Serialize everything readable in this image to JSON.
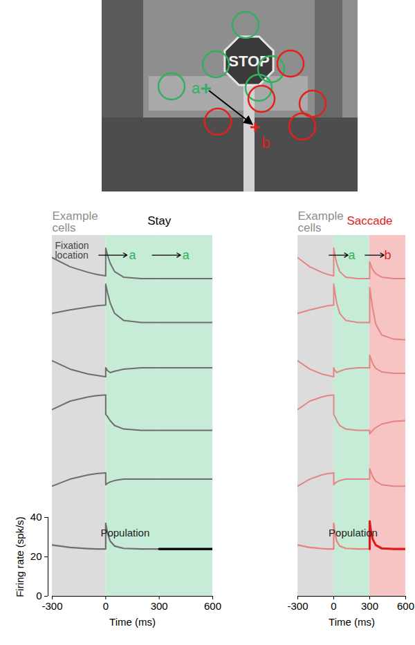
{
  "scene": {
    "sign_text": "STOP",
    "fixations": [
      {
        "label": "a",
        "color": "#33b05f"
      },
      {
        "label": "b",
        "color": "#e3201b"
      }
    ]
  },
  "chart_data": [
    {
      "type": "line",
      "title": "Stay",
      "panel_label": "Example cells",
      "fixation_label": "Fixation location",
      "x": [
        -300,
        -200,
        -100,
        -50,
        0,
        0,
        10,
        25,
        50,
        100,
        200,
        300,
        300,
        310,
        325,
        350,
        400,
        500,
        600
      ],
      "xlim": [
        -300,
        600
      ],
      "xticks": [
        -300,
        0,
        300,
        600
      ],
      "xlabel": "Time (ms)",
      "epochs": [
        {
          "start": -300,
          "end": 0,
          "color": "#dcdcdc"
        },
        {
          "start": 0,
          "end": 300,
          "color": "#c6ebd6",
          "fixation": "a",
          "fixation_color": "#33b05f"
        },
        {
          "start": 300,
          "end": 600,
          "color": "#c6ebd6",
          "fixation": "a",
          "fixation_color": "#33b05f"
        }
      ],
      "example_cells": {
        "ylim": [
          0,
          405
        ],
        "tick_labels": false,
        "series": [
          {
            "color": "#6e6e6e",
            "values": [
              373,
              360,
              352,
              349,
              347,
              387,
              377,
              365,
              353,
              345,
              343,
              343,
              343,
              343,
              343,
              343,
              343,
              343,
              343
            ]
          },
          {
            "color": "#6e6e6e",
            "values": [
              293,
              298,
              302,
              304,
              305,
              335,
              323,
              308,
              293,
              283,
              280,
              280,
              280,
              280,
              280,
              280,
              280,
              280,
              280
            ]
          },
          {
            "color": "#6e6e6e",
            "values": [
              225,
              213,
              206,
              204,
              202,
              215,
              211,
              208,
              210,
              213,
              215,
              215,
              215,
              215,
              215,
              215,
              215,
              215,
              215
            ]
          },
          {
            "color": "#6e6e6e",
            "values": [
              155,
              167,
              173,
              175,
              176,
              148,
              145,
              139,
              132,
              127,
              125,
              125,
              125,
              125,
              125,
              125,
              125,
              125,
              125
            ]
          },
          {
            "color": "#6e6e6e",
            "values": [
              45,
              55,
              61,
              63,
              64,
              47,
              49,
              51,
              53,
              55,
              55,
              55,
              55,
              55,
              55,
              55,
              55,
              55,
              55
            ]
          }
        ]
      },
      "population": {
        "label": "Population",
        "ylabel": "Firing rate (spk/s)",
        "ylim": [
          0,
          40
        ],
        "yticks": [
          0,
          20,
          40
        ],
        "series": [
          {
            "color": "#6e6e6e",
            "values": [
              26,
              24.8,
              24.2,
              24,
              24,
              37,
              32,
              28,
              25.5,
              24.3,
              24,
              24,
              24,
              24,
              24,
              24,
              24,
              24,
              24
            ]
          },
          {
            "color": "#000000",
            "values": [
              null,
              null,
              null,
              null,
              null,
              null,
              null,
              null,
              null,
              null,
              null,
              24,
              24,
              24,
              24,
              24,
              24,
              24,
              24
            ]
          }
        ]
      }
    },
    {
      "type": "line",
      "title": "Saccade",
      "panel_label": "Example cells",
      "x": [
        -300,
        -200,
        -100,
        -50,
        0,
        0,
        10,
        25,
        50,
        100,
        200,
        300,
        300,
        310,
        325,
        350,
        400,
        500,
        600
      ],
      "xlim": [
        -300,
        600
      ],
      "xticks": [
        -300,
        0,
        300,
        600
      ],
      "xlabel": "Time (ms)",
      "epochs": [
        {
          "start": -300,
          "end": 0,
          "color": "#dcdcdc"
        },
        {
          "start": 0,
          "end": 300,
          "color": "#c6ebd6",
          "fixation": "a",
          "fixation_color": "#33b05f"
        },
        {
          "start": 300,
          "end": 600,
          "color": "#f7c4c4",
          "fixation": "b",
          "fixation_color": "#e3201b"
        }
      ],
      "example_cells": {
        "ylim": [
          0,
          405
        ],
        "tick_labels": false,
        "series": [
          {
            "color": "#e48484",
            "values": [
              373,
              360,
              352,
              349,
              347,
              387,
              377,
              365,
              353,
              345,
              343,
              343,
              367,
              362,
              356,
              350,
              345,
              343,
              343
            ]
          },
          {
            "color": "#e48484",
            "values": [
              293,
              298,
              302,
              304,
              305,
              335,
              323,
              308,
              293,
              283,
              280,
              280,
              330,
              318,
              300,
              278,
              262,
              256,
              255
            ]
          },
          {
            "color": "#e48484",
            "values": [
              225,
              213,
              206,
              204,
              202,
              215,
              211,
              208,
              210,
              213,
              215,
              215,
              233,
              228,
              221,
              214,
              209,
              207,
              207
            ]
          },
          {
            "color": "#e48484",
            "values": [
              155,
              167,
              173,
              175,
              176,
              148,
              145,
              139,
              132,
              127,
              125,
              125,
              120,
              122,
              125,
              129,
              134,
              138,
              139
            ]
          },
          {
            "color": "#e48484",
            "values": [
              45,
              55,
              61,
              63,
              64,
              47,
              49,
              51,
              53,
              55,
              55,
              55,
              70,
              65,
              59,
              52,
              47,
              45,
              45
            ]
          }
        ]
      },
      "population": {
        "label": "Population",
        "ylim": [
          0,
          40
        ],
        "tick_labels": "x",
        "series": [
          {
            "color": "#ee7f7f",
            "values": [
              26,
              24.8,
              24.2,
              24,
              24,
              37,
              32,
              28,
              25.5,
              24.3,
              24,
              24,
              null,
              null,
              null,
              null,
              null,
              null,
              null
            ]
          },
          {
            "color": "#e2191c",
            "values": [
              null,
              null,
              null,
              null,
              null,
              null,
              null,
              null,
              null,
              null,
              null,
              24,
              38,
              33,
              29,
              26,
              24.3,
              24,
              24
            ]
          }
        ]
      }
    }
  ]
}
